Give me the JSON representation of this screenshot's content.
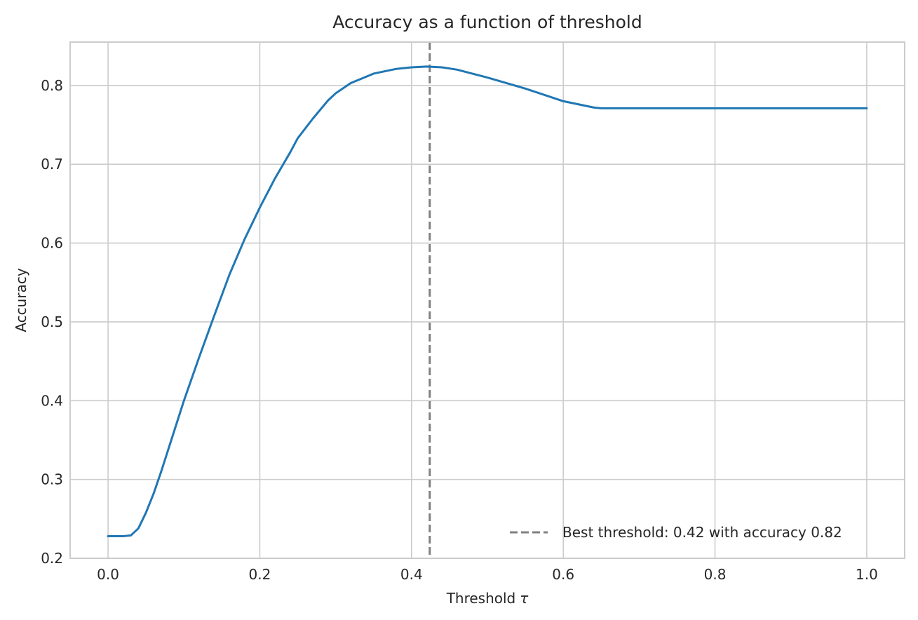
{
  "chart_data": {
    "type": "line",
    "title": "Accuracy as a function of threshold",
    "xlabel": "Threshold",
    "xlabel_symbol": "τ",
    "ylabel": "Accuracy",
    "xlim": [
      -0.05,
      1.05
    ],
    "ylim": [
      0.2,
      0.855
    ],
    "xticks": [
      0.0,
      0.2,
      0.4,
      0.6,
      0.8,
      1.0
    ],
    "xtick_labels": [
      "0.0",
      "0.2",
      "0.4",
      "0.6",
      "0.8",
      "1.0"
    ],
    "yticks": [
      0.2,
      0.3,
      0.4,
      0.5,
      0.6,
      0.7,
      0.8
    ],
    "ytick_labels": [
      "0.2",
      "0.3",
      "0.4",
      "0.5",
      "0.6",
      "0.7",
      "0.8"
    ],
    "grid": true,
    "legend_position": "lower-right",
    "series": [
      {
        "color": "#1f77b4",
        "x": [
          0.0,
          0.01,
          0.02,
          0.03,
          0.04,
          0.05,
          0.06,
          0.07,
          0.08,
          0.09,
          0.1,
          0.12,
          0.14,
          0.16,
          0.18,
          0.2,
          0.22,
          0.24,
          0.25,
          0.27,
          0.29,
          0.3,
          0.32,
          0.35,
          0.38,
          0.4,
          0.42,
          0.44,
          0.46,
          0.5,
          0.55,
          0.6,
          0.62,
          0.64,
          0.65,
          0.66,
          0.7,
          0.8,
          0.9,
          1.0
        ],
        "values": [
          0.228,
          0.228,
          0.228,
          0.229,
          0.238,
          0.258,
          0.282,
          0.31,
          0.34,
          0.37,
          0.4,
          0.455,
          0.508,
          0.56,
          0.605,
          0.645,
          0.682,
          0.715,
          0.733,
          0.758,
          0.781,
          0.79,
          0.803,
          0.815,
          0.821,
          0.823,
          0.824,
          0.823,
          0.82,
          0.81,
          0.796,
          0.78,
          0.776,
          0.772,
          0.771,
          0.771,
          0.771,
          0.771,
          0.771,
          0.771
        ]
      }
    ],
    "reference_lines": [
      {
        "orientation": "vertical",
        "x": 0.424,
        "color": "#808080",
        "style": "dashed",
        "legend_label": "Best threshold: 0.42 with accuracy 0.82"
      }
    ]
  }
}
